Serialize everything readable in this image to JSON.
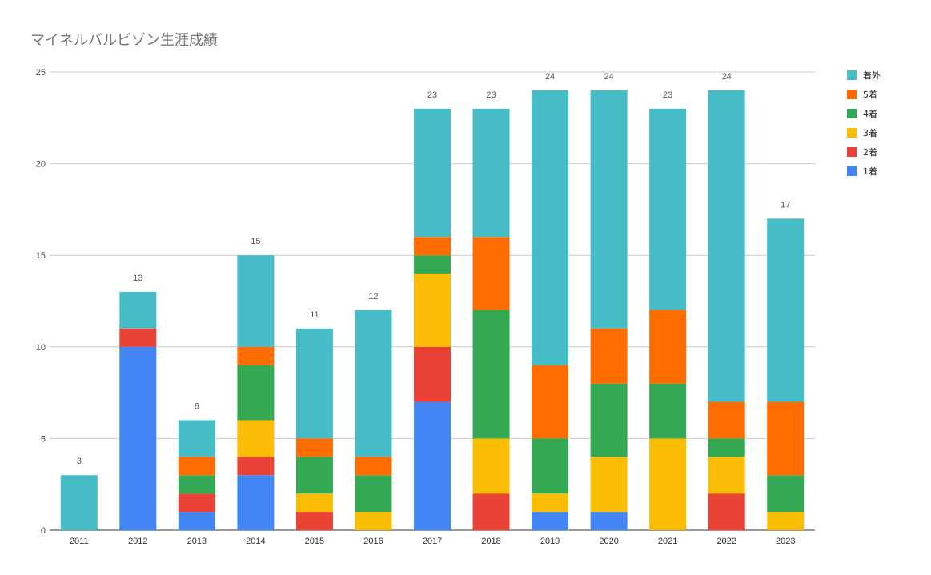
{
  "chart_data": {
    "type": "bar",
    "stacked": true,
    "title": "マイネルバルビゾン生涯成績",
    "xlabel": "",
    "ylabel": "",
    "ylim": [
      0,
      25
    ],
    "yticks": [
      0,
      5,
      10,
      15,
      20,
      25
    ],
    "grid": true,
    "legend_position": "right",
    "categories": [
      "2011",
      "2012",
      "2013",
      "2014",
      "2015",
      "2016",
      "2017",
      "2018",
      "2019",
      "2020",
      "2021",
      "2022",
      "2023"
    ],
    "series": [
      {
        "name": "1着",
        "color": "#4285f4",
        "values": [
          0,
          10,
          1,
          3,
          0,
          0,
          7,
          0,
          1,
          1,
          0,
          0,
          0
        ]
      },
      {
        "name": "2着",
        "color": "#ea4335",
        "values": [
          0,
          1,
          1,
          1,
          1,
          0,
          3,
          2,
          0,
          0,
          0,
          2,
          0
        ]
      },
      {
        "name": "3着",
        "color": "#fbbc04",
        "values": [
          0,
          0,
          0,
          2,
          1,
          1,
          4,
          3,
          1,
          3,
          5,
          2,
          1
        ]
      },
      {
        "name": "4着",
        "color": "#34a853",
        "values": [
          0,
          0,
          1,
          3,
          2,
          2,
          1,
          7,
          3,
          4,
          3,
          1,
          2
        ]
      },
      {
        "name": "5着",
        "color": "#ff6d01",
        "values": [
          0,
          0,
          1,
          1,
          1,
          1,
          1,
          4,
          4,
          3,
          4,
          2,
          4
        ]
      },
      {
        "name": "着外",
        "color": "#46bdc6",
        "values": [
          3,
          2,
          2,
          5,
          6,
          8,
          7,
          7,
          15,
          13,
          11,
          17,
          10
        ]
      }
    ],
    "totals": [
      3,
      13,
      6,
      15,
      11,
      12,
      23,
      23,
      24,
      24,
      23,
      24,
      17
    ]
  }
}
